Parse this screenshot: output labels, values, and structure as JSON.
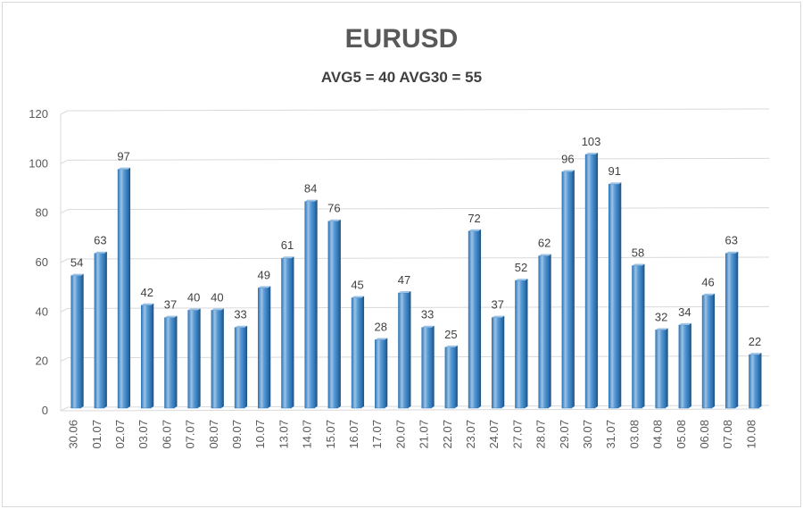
{
  "chart_data": {
    "type": "bar",
    "title": "EURUSD",
    "subtitle": "AVG5 = 40 AVG30 = 55",
    "categories": [
      "30.06",
      "01.07",
      "02.07",
      "03.07",
      "06.07",
      "07.07",
      "08.07",
      "09.07",
      "10.07",
      "13.07",
      "14.07",
      "15.07",
      "16.07",
      "17.07",
      "20.07",
      "21.07",
      "22.07",
      "23.07",
      "24.07",
      "27.07",
      "28.07",
      "29.07",
      "30.07",
      "31.07",
      "03.08",
      "04.08",
      "05.08",
      "06.08",
      "07.08",
      "10.08"
    ],
    "values": [
      54,
      63,
      97,
      42,
      37,
      40,
      40,
      33,
      49,
      61,
      84,
      76,
      45,
      28,
      47,
      33,
      25,
      72,
      37,
      52,
      62,
      96,
      103,
      91,
      58,
      32,
      34,
      46,
      63,
      22
    ],
    "xlabel": "",
    "ylabel": "",
    "ylim": [
      0,
      120
    ],
    "yticks": [
      0,
      20,
      40,
      60,
      80,
      100,
      120
    ],
    "grid": true,
    "legend": "none",
    "bar_style": "3d-cylinder-like bars",
    "colors": {
      "bar_front": "#5b9bd5",
      "bar_light": "#9dc3e6",
      "bar_dark": "#2e75b6",
      "grid": "#d9d9d9",
      "axis_text": "#595959"
    }
  }
}
